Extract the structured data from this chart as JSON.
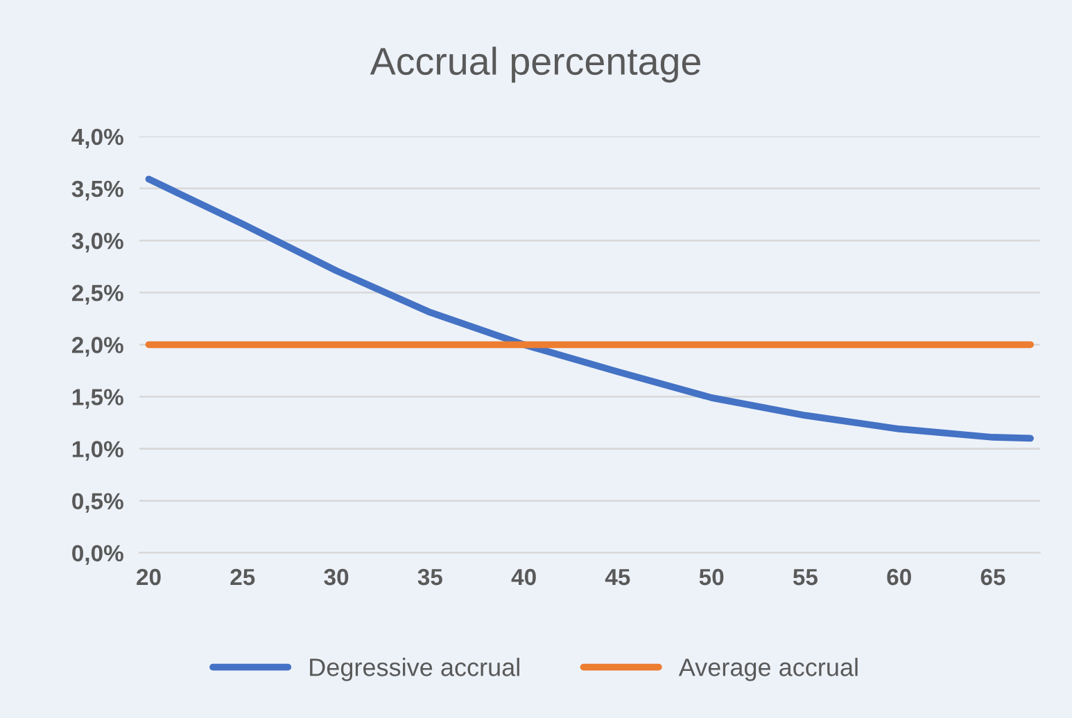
{
  "chart_data": {
    "type": "line",
    "title": "Accrual percentage",
    "xlim": [
      19.5,
      67.5
    ],
    "xticks": [
      20,
      25,
      30,
      35,
      40,
      45,
      50,
      55,
      60,
      65
    ],
    "ylim": [
      0,
      4
    ],
    "yticks": [
      {
        "value": 0,
        "label": "0,0%"
      },
      {
        "value": 0.5,
        "label": "0,5%"
      },
      {
        "value": 1,
        "label": "1,0%"
      },
      {
        "value": 1.5,
        "label": "1,5%"
      },
      {
        "value": 2,
        "label": "2,0%"
      },
      {
        "value": 2.5,
        "label": "2,5%"
      },
      {
        "value": 3,
        "label": "3,0%"
      },
      {
        "value": 3.5,
        "label": "3,5%"
      },
      {
        "value": 4,
        "label": "4,0%"
      }
    ],
    "grid": "y",
    "legend": "bottom",
    "marker": "none",
    "line_style": "solid",
    "series": [
      {
        "name": "Degressive accrual",
        "color": "#4472c4",
        "x": [
          20,
          25,
          30,
          35,
          40,
          45,
          50,
          55,
          60,
          65,
          67
        ],
        "values": [
          3.59,
          3.16,
          2.71,
          2.31,
          2.0,
          1.74,
          1.49,
          1.32,
          1.19,
          1.11,
          1.1
        ]
      },
      {
        "name": "Average accrual",
        "color": "#ed7d31",
        "x": [
          20,
          67
        ],
        "values": [
          2.0,
          2.0
        ]
      }
    ]
  }
}
